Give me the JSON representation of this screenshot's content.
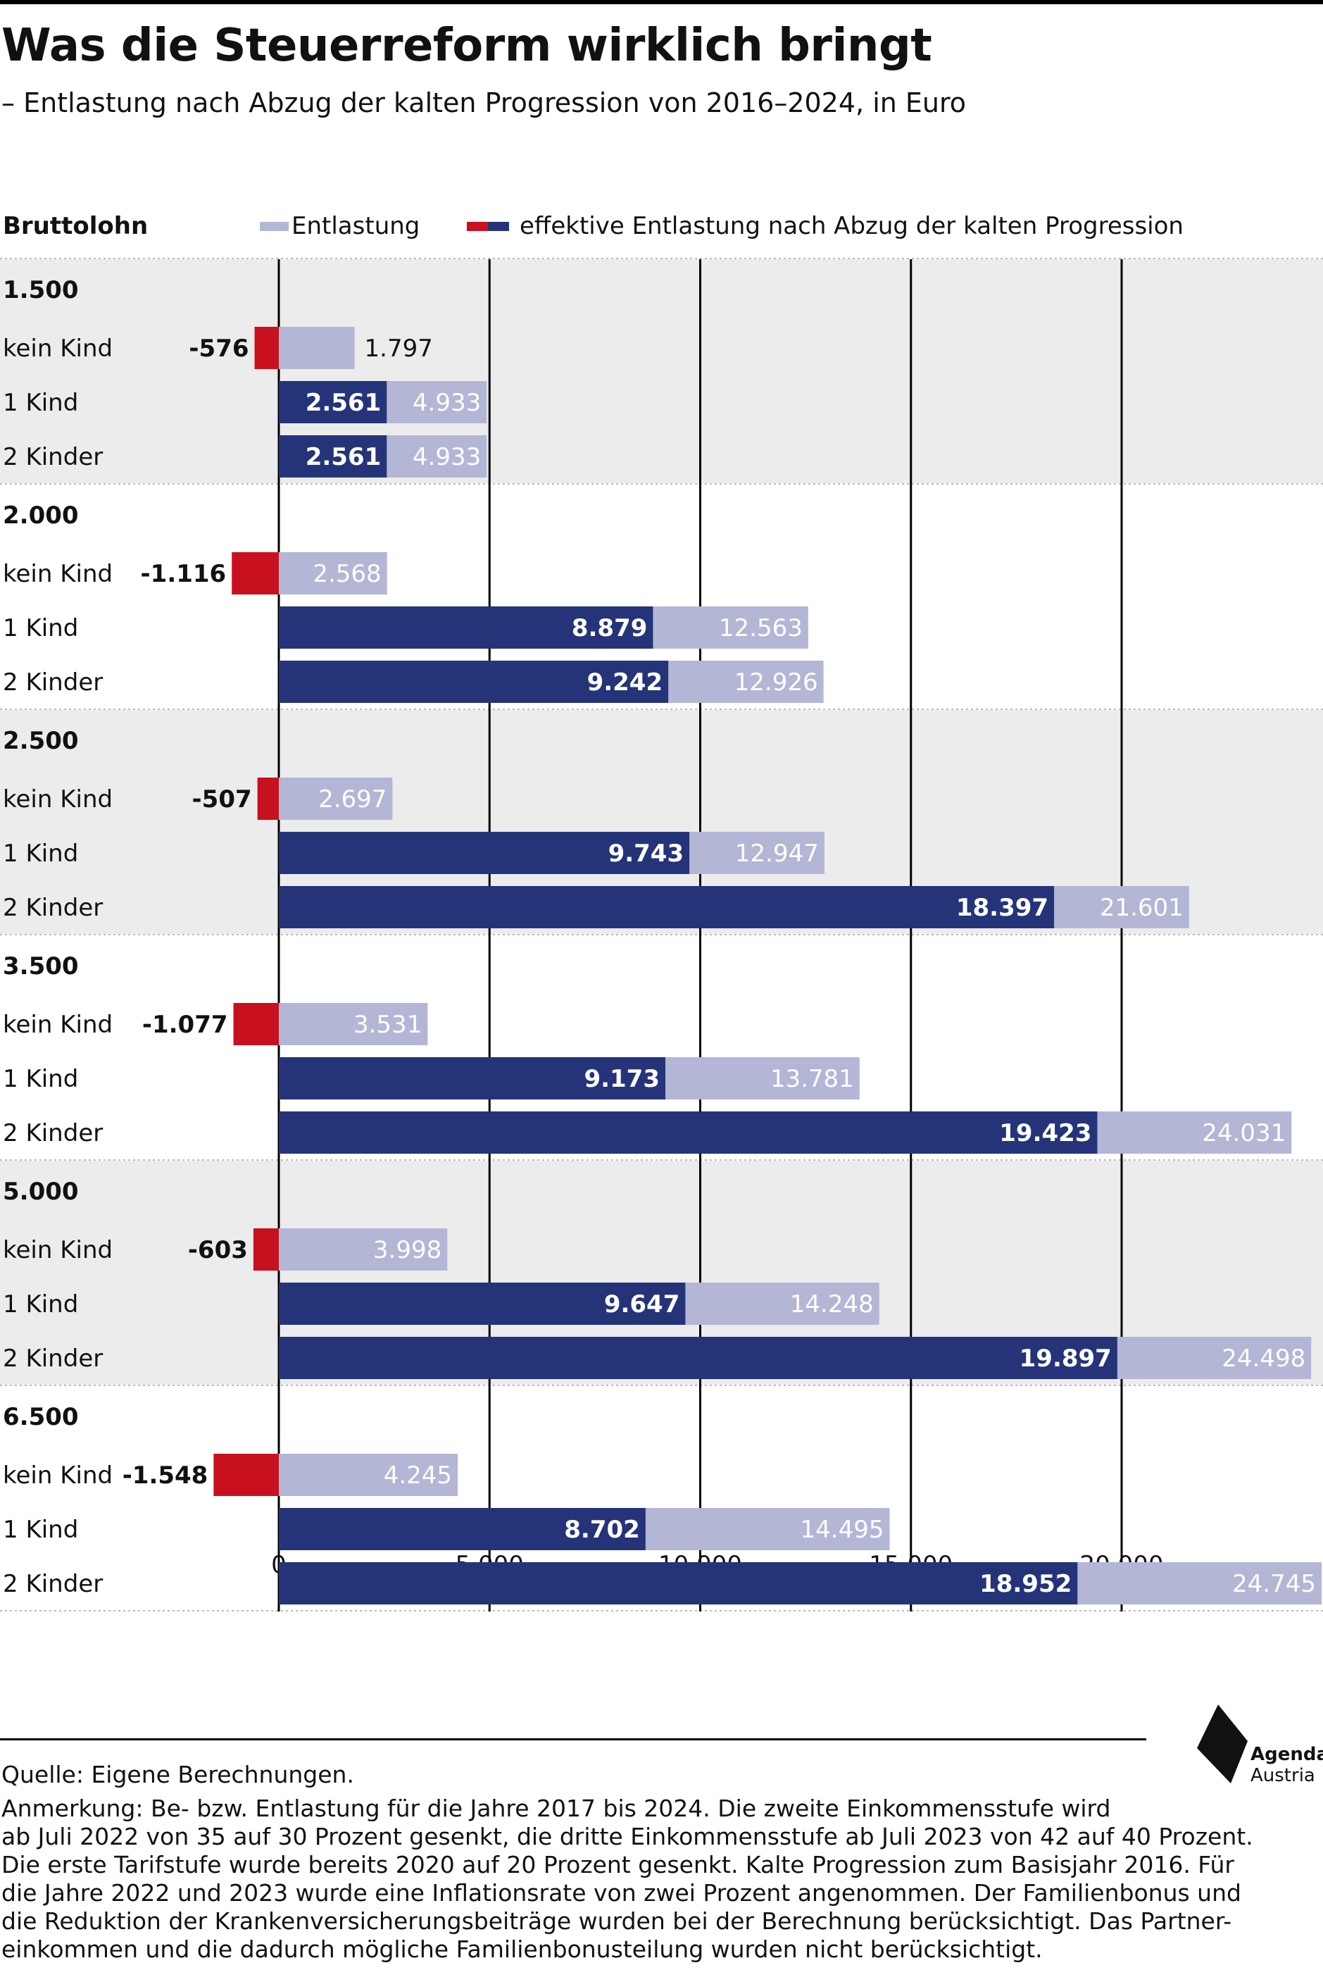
{
  "title": "Was die Steuerreform wirklich bringt",
  "subtitle": "– Entlastung nach Abzug der kalten Progression von 2016–2024, in Euro",
  "source": "Quelle: Eigene Berechnungen.",
  "note_lines": [
    "Anmerkung: Be- bzw. Entlastung für die Jahre 2017 bis 2024. Die zweite Einkommensstufe wird",
    "ab Juli 2022 von 35 auf 30 Prozent gesenkt, die dritte Einkommensstufe ab Juli 2023 von 42 auf 40 Prozent.",
    "Die erste Tarifstufe wurde bereits 2020 auf 20 Prozent gesenkt. Kalte Progression zum Basisjahr 2016. Für",
    "die Jahre 2022 und 2023 wurde eine Inflationsrate von zwei Prozent angenommen. Der Familienbonus und",
    "die Reduktion der Krankenversicherungsbeiträge wurden bei der Berechnung berücksichtigt. Das Partner-",
    "einkommen und die dadurch mögliche Familienbonusteilung wurden nicht berücksichtigt."
  ],
  "logo": {
    "line1": "Agenda",
    "line2": "Austria"
  },
  "chart_data": {
    "type": "bar",
    "orientation": "horizontal",
    "group_axis_label": "Bruttolohn",
    "legend": [
      {
        "name": "Entlastung",
        "color": "#b3b6d5"
      },
      {
        "name": "effektive Entlastung nach Abzug der kalten Progression",
        "colors": [
          "#c8101e",
          "#253479"
        ]
      }
    ],
    "colors": {
      "entlastung": "#b3b6d5",
      "effektiv_positive": "#253479",
      "effektiv_negative": "#c8101e",
      "band": "#ececec"
    },
    "xlim": [
      0,
      24745
    ],
    "x_ticks": [
      0,
      5000,
      10000,
      15000,
      20000
    ],
    "x_tick_labels": [
      "0",
      "5.000",
      "10.000",
      "15.000",
      "20.000"
    ],
    "vertical_gridlines": true,
    "groups": [
      {
        "label": "1.500",
        "rows": [
          {
            "label": "kein Kind",
            "entlastung": 1797,
            "entlastung_label": "1.797",
            "effektiv": -576,
            "effektiv_label": "-576"
          },
          {
            "label": "1 Kind",
            "entlastung": 4933,
            "entlastung_label": "4.933",
            "effektiv": 2561,
            "effektiv_label": "2.561"
          },
          {
            "label": "2 Kinder",
            "entlastung": 4933,
            "entlastung_label": "4.933",
            "effektiv": 2561,
            "effektiv_label": "2.561"
          }
        ]
      },
      {
        "label": "2.000",
        "rows": [
          {
            "label": "kein Kind",
            "entlastung": 2568,
            "entlastung_label": "2.568",
            "effektiv": -1116,
            "effektiv_label": "-1.116"
          },
          {
            "label": "1 Kind",
            "entlastung": 12563,
            "entlastung_label": "12.563",
            "effektiv": 8879,
            "effektiv_label": "8.879"
          },
          {
            "label": "2 Kinder",
            "entlastung": 12926,
            "entlastung_label": "12.926",
            "effektiv": 9242,
            "effektiv_label": "9.242"
          }
        ]
      },
      {
        "label": "2.500",
        "rows": [
          {
            "label": "kein Kind",
            "entlastung": 2697,
            "entlastung_label": "2.697",
            "effektiv": -507,
            "effektiv_label": "-507"
          },
          {
            "label": "1 Kind",
            "entlastung": 12947,
            "entlastung_label": "12.947",
            "effektiv": 9743,
            "effektiv_label": "9.743"
          },
          {
            "label": "2 Kinder",
            "entlastung": 21601,
            "entlastung_label": "21.601",
            "effektiv": 18397,
            "effektiv_label": "18.397"
          }
        ]
      },
      {
        "label": "3.500",
        "rows": [
          {
            "label": "kein Kind",
            "entlastung": 3531,
            "entlastung_label": "3.531",
            "effektiv": -1077,
            "effektiv_label": "-1.077"
          },
          {
            "label": "1 Kind",
            "entlastung": 13781,
            "entlastung_label": "13.781",
            "effektiv": 9173,
            "effektiv_label": "9.173"
          },
          {
            "label": "2 Kinder",
            "entlastung": 24031,
            "entlastung_label": "24.031",
            "effektiv": 19423,
            "effektiv_label": "19.423"
          }
        ]
      },
      {
        "label": "5.000",
        "rows": [
          {
            "label": "kein Kind",
            "entlastung": 3998,
            "entlastung_label": "3.998",
            "effektiv": -603,
            "effektiv_label": "-603"
          },
          {
            "label": "1 Kind",
            "entlastung": 14248,
            "entlastung_label": "14.248",
            "effektiv": 9647,
            "effektiv_label": "9.647"
          },
          {
            "label": "2 Kinder",
            "entlastung": 24498,
            "entlastung_label": "24.498",
            "effektiv": 19897,
            "effektiv_label": "19.897"
          }
        ]
      },
      {
        "label": "6.500",
        "rows": [
          {
            "label": "kein Kind",
            "entlastung": 4245,
            "entlastung_label": "4.245",
            "effektiv": -1548,
            "effektiv_label": "-1.548"
          },
          {
            "label": "1 Kind",
            "entlastung": 14495,
            "entlastung_label": "14.495",
            "effektiv": 8702,
            "effektiv_label": "8.702"
          },
          {
            "label": "2 Kinder",
            "entlastung": 24745,
            "entlastung_label": "24.745",
            "effektiv": 18952,
            "effektiv_label": "18.952"
          }
        ]
      }
    ]
  }
}
